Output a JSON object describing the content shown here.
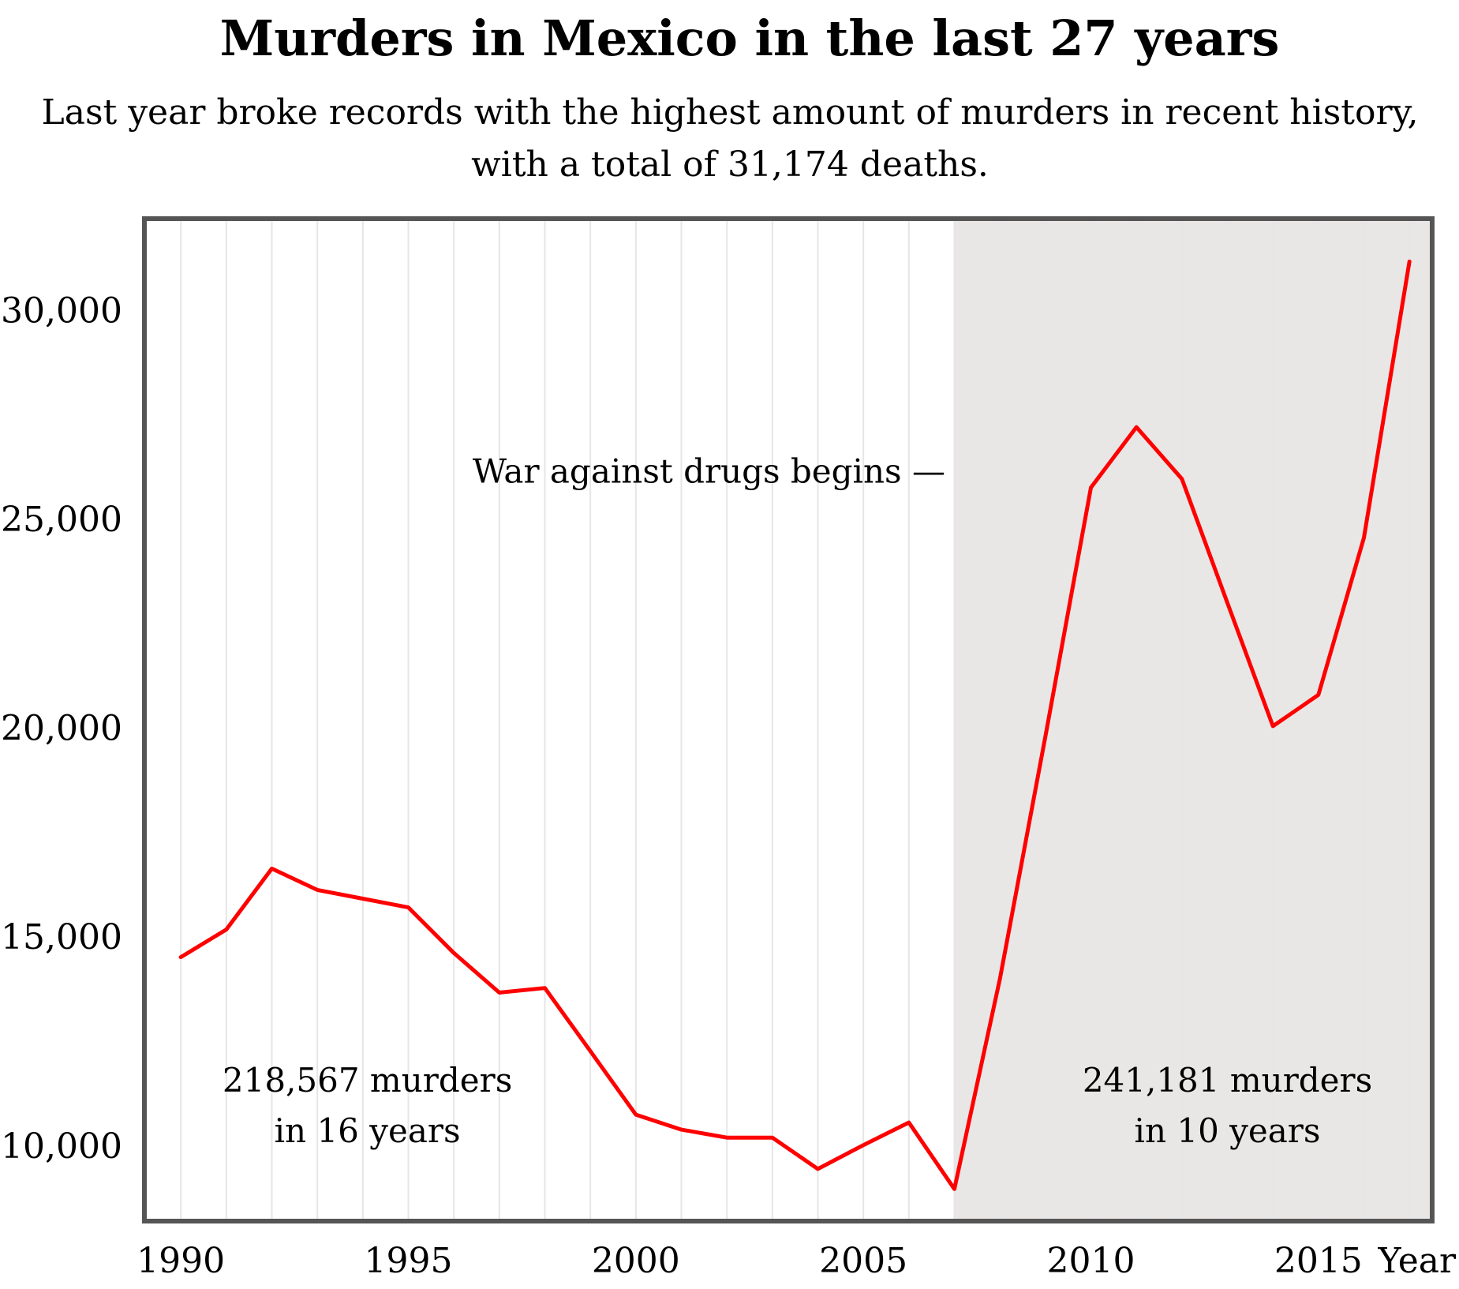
{
  "chart_data": {
    "type": "line",
    "title": "Murders in Mexico in the last 27 years",
    "subtitle_lines": [
      "Last year broke records with the highest amount of murders in recent history,",
      "with a total of 31,174 deaths."
    ],
    "xlabel": "Year",
    "ylabel": "",
    "xlim": [
      1989.2,
      2017.5
    ],
    "ylim": [
      8200,
      32200
    ],
    "x_ticks": [
      1990,
      1995,
      2000,
      2005,
      2010,
      2015
    ],
    "y_ticks": [
      10000,
      15000,
      20000,
      25000,
      30000
    ],
    "y_tick_labels": [
      "10,000",
      "15,000",
      "20,000",
      "25,000",
      "30,000"
    ],
    "grid": "vertical",
    "series": [
      {
        "color": "#ff0000",
        "x": [
          1990,
          1991,
          1992,
          1993,
          1994,
          1995,
          1996,
          1997,
          1998,
          1999,
          2000,
          2001,
          2002,
          2003,
          2004,
          2005,
          2006,
          2007,
          2008,
          2009,
          2010,
          2011,
          2012,
          2013,
          2014,
          2015,
          2016,
          2017
        ],
        "y": [
          14520,
          15180,
          16640,
          16130,
          15920,
          15710,
          14620,
          13670,
          13780,
          12270,
          10750,
          10390,
          10200,
          10200,
          9450,
          10020,
          10560,
          8970,
          14000,
          19800,
          25760,
          27210,
          25970,
          23000,
          20050,
          20800,
          24560,
          31174
        ]
      }
    ],
    "shaded_region": {
      "x_start": 2007.0,
      "x_end": 2017.5,
      "color": "#e9e7e6"
    },
    "annotations": [
      {
        "lines": [
          "War against drugs begins —"
        ],
        "x": 2006.8,
        "y": 25880,
        "anchor": "end"
      },
      {
        "lines": [
          "218,567 murders",
          "in 16 years"
        ],
        "x": 1994.1,
        "y": 11300,
        "anchor": "middle"
      },
      {
        "lines": [
          "241,181 murders",
          "in 10 years"
        ],
        "x": 2013.0,
        "y": 11300,
        "anchor": "middle"
      }
    ],
    "frame_color": "#555555",
    "grid_color": "#e6e6e6"
  }
}
